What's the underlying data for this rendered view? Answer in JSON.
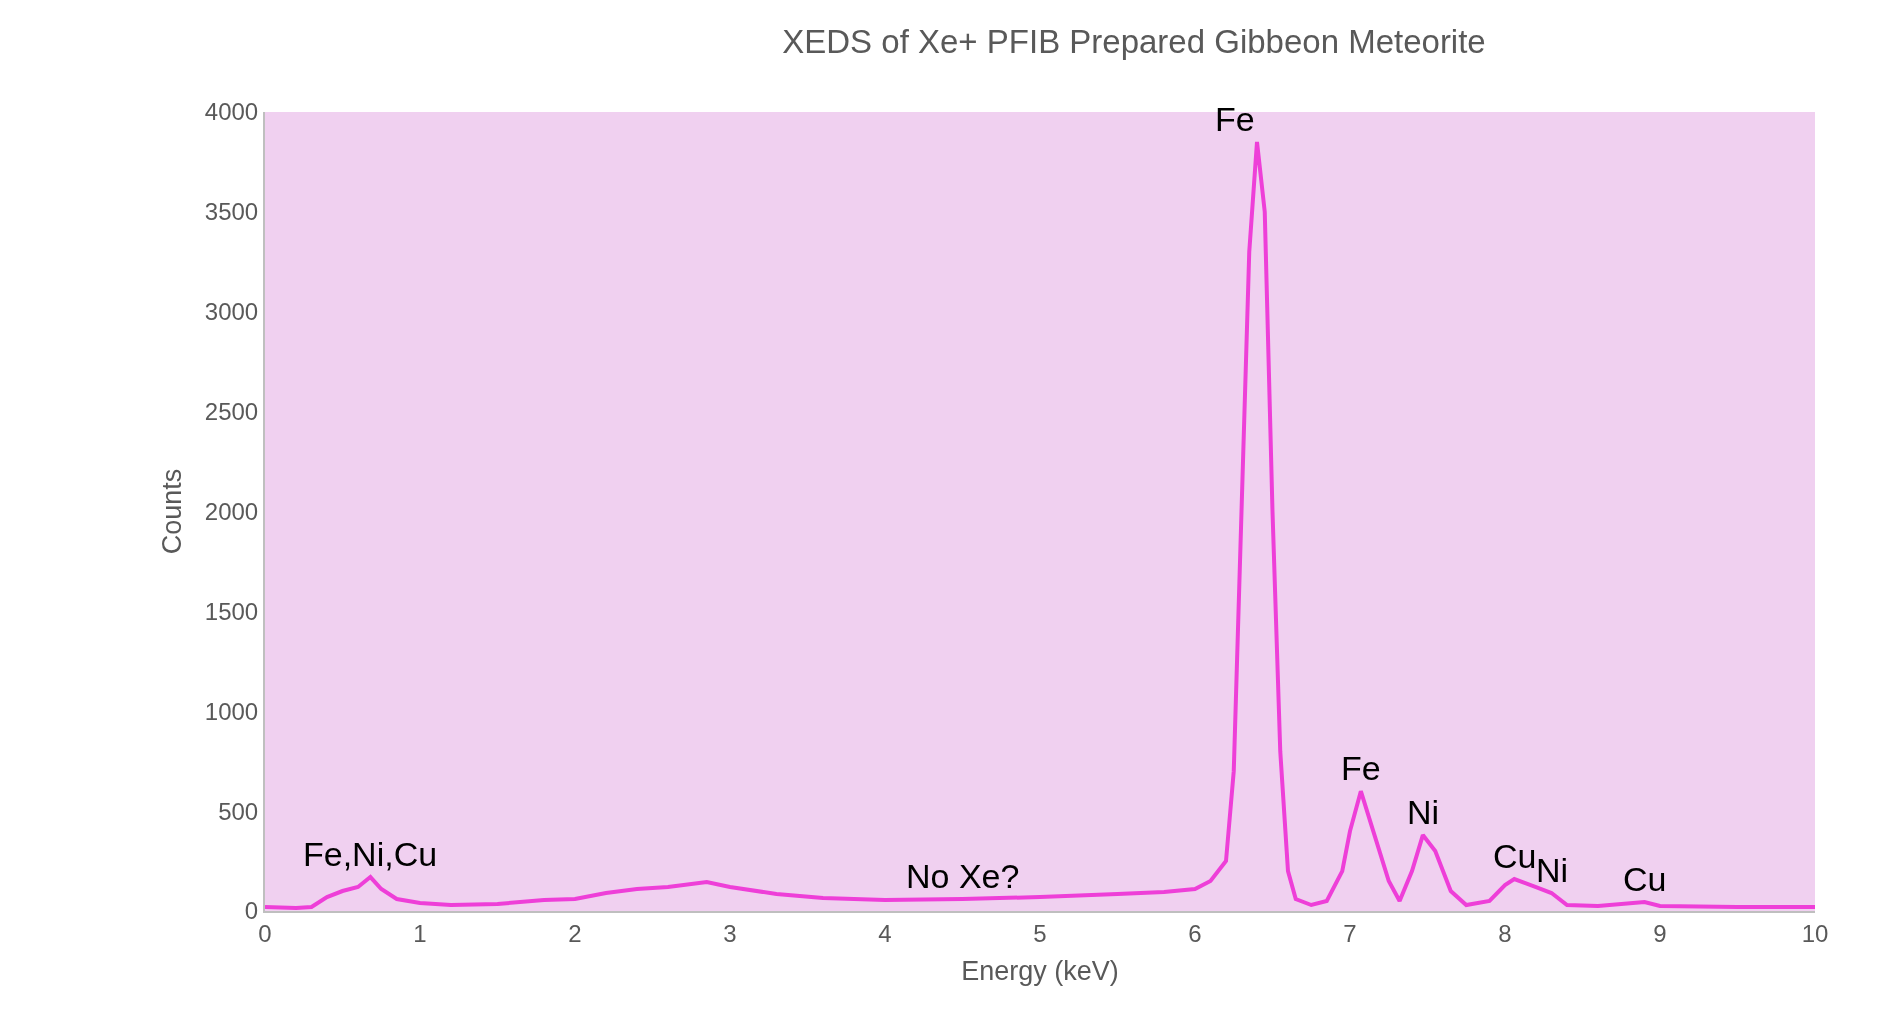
{
  "chart_data": {
    "type": "line",
    "title": "XEDS of Xe+ PFIB Prepared Gibbeon Meteorite",
    "xlabel": "Energy (keV)",
    "ylabel": "Counts",
    "series": [
      {
        "color": "#ee3fd8",
        "x": [
          0,
          0.2,
          0.3,
          0.4,
          0.5,
          0.6,
          0.68,
          0.75,
          0.85,
          1.0,
          1.2,
          1.5,
          1.8,
          2.0,
          2.2,
          2.4,
          2.6,
          2.85,
          3.0,
          3.3,
          3.6,
          4.0,
          4.5,
          5.0,
          5.5,
          5.8,
          6.0,
          6.1,
          6.2,
          6.25,
          6.3,
          6.35,
          6.4,
          6.45,
          6.5,
          6.55,
          6.6,
          6.65,
          6.75,
          6.85,
          6.95,
          7.0,
          7.07,
          7.15,
          7.25,
          7.32,
          7.4,
          7.47,
          7.55,
          7.65,
          7.75,
          7.9,
          8.0,
          8.06,
          8.2,
          8.3,
          8.4,
          8.6,
          8.9,
          9.0,
          9.5,
          10
        ],
        "values": [
          20,
          15,
          20,
          70,
          100,
          120,
          170,
          110,
          60,
          40,
          30,
          35,
          55,
          60,
          90,
          110,
          120,
          145,
          120,
          85,
          65,
          55,
          60,
          70,
          85,
          95,
          110,
          150,
          250,
          700,
          2000,
          3300,
          3850,
          3500,
          2000,
          800,
          200,
          60,
          30,
          50,
          200,
          400,
          600,
          400,
          150,
          50,
          200,
          380,
          300,
          100,
          30,
          50,
          130,
          160,
          120,
          90,
          30,
          25,
          45,
          25,
          20,
          20
        ]
      }
    ],
    "xlim": [
      0,
      10
    ],
    "xticks": [
      0,
      1,
      2,
      3,
      4,
      5,
      6,
      7,
      8,
      9,
      10
    ],
    "ylim": [
      0,
      4000
    ],
    "yticks": [
      0,
      500,
      1000,
      1500,
      2000,
      2500,
      3000,
      3500,
      4000
    ],
    "grid": false,
    "marker": "none",
    "line_style": "solid",
    "annotations": [
      {
        "text": "Fe,Ni,Cu",
        "x": 0.68,
        "y": 170
      },
      {
        "text": "No Xe?",
        "x": 4.5,
        "y": 60
      },
      {
        "text": "Fe",
        "x": 6.4,
        "y": 3850
      },
      {
        "text": "Fe",
        "x": 7.07,
        "y": 600
      },
      {
        "text": "Ni",
        "x": 7.47,
        "y": 380
      },
      {
        "text": "Cu",
        "x": 8.06,
        "y": 160
      },
      {
        "text": "Ni",
        "x": 8.3,
        "y": 90
      },
      {
        "text": "Cu",
        "x": 8.9,
        "y": 45
      }
    ]
  }
}
